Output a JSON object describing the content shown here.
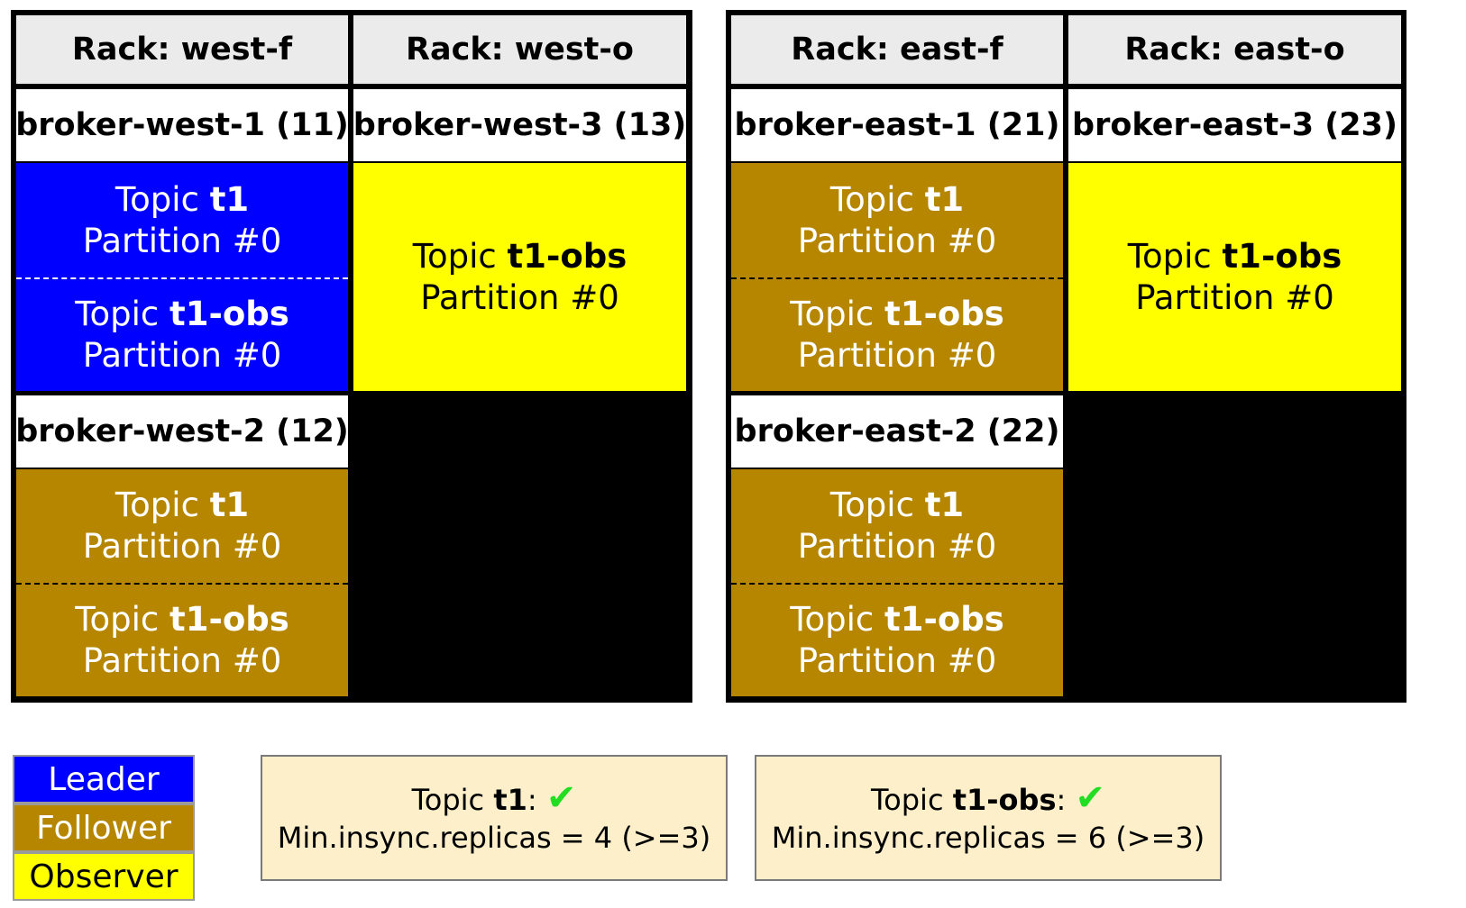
{
  "colors": {
    "leader": "#0000ff",
    "follower": "#b68600",
    "observer": "#ffff00",
    "header": "#ebebeb",
    "summary_bg": "#fcefca",
    "check": "#22dd22"
  },
  "west": {
    "rack_f": "Rack: west-f",
    "rack_o": "Rack: west-o",
    "broker1": "broker-west-1 (11)",
    "broker2": "broker-west-2 (12)",
    "broker3": "broker-west-3 (13)"
  },
  "east": {
    "rack_f": "Rack: east-f",
    "rack_o": "Rack: east-o",
    "broker1": "broker-east-1 (21)",
    "broker2": "broker-east-2 (22)",
    "broker3": "broker-east-3 (23)"
  },
  "replica": {
    "topic_word": "Topic ",
    "t1": "t1",
    "t1obs": "t1-obs",
    "partition": "Partition #0"
  },
  "legend": {
    "leader": "Leader",
    "follower": "Follower",
    "observer": "Observer"
  },
  "summary": {
    "t1": {
      "topic_word": "Topic ",
      "name": "t1",
      "colon": ":",
      "check": "✔",
      "detail": "Min.insync.replicas = 4 (>=3)"
    },
    "t1obs": {
      "topic_word": "Topic ",
      "name": "t1-obs",
      "colon": ":",
      "check": "✔",
      "detail": "Min.insync.replicas = 6 (>=3)"
    }
  }
}
